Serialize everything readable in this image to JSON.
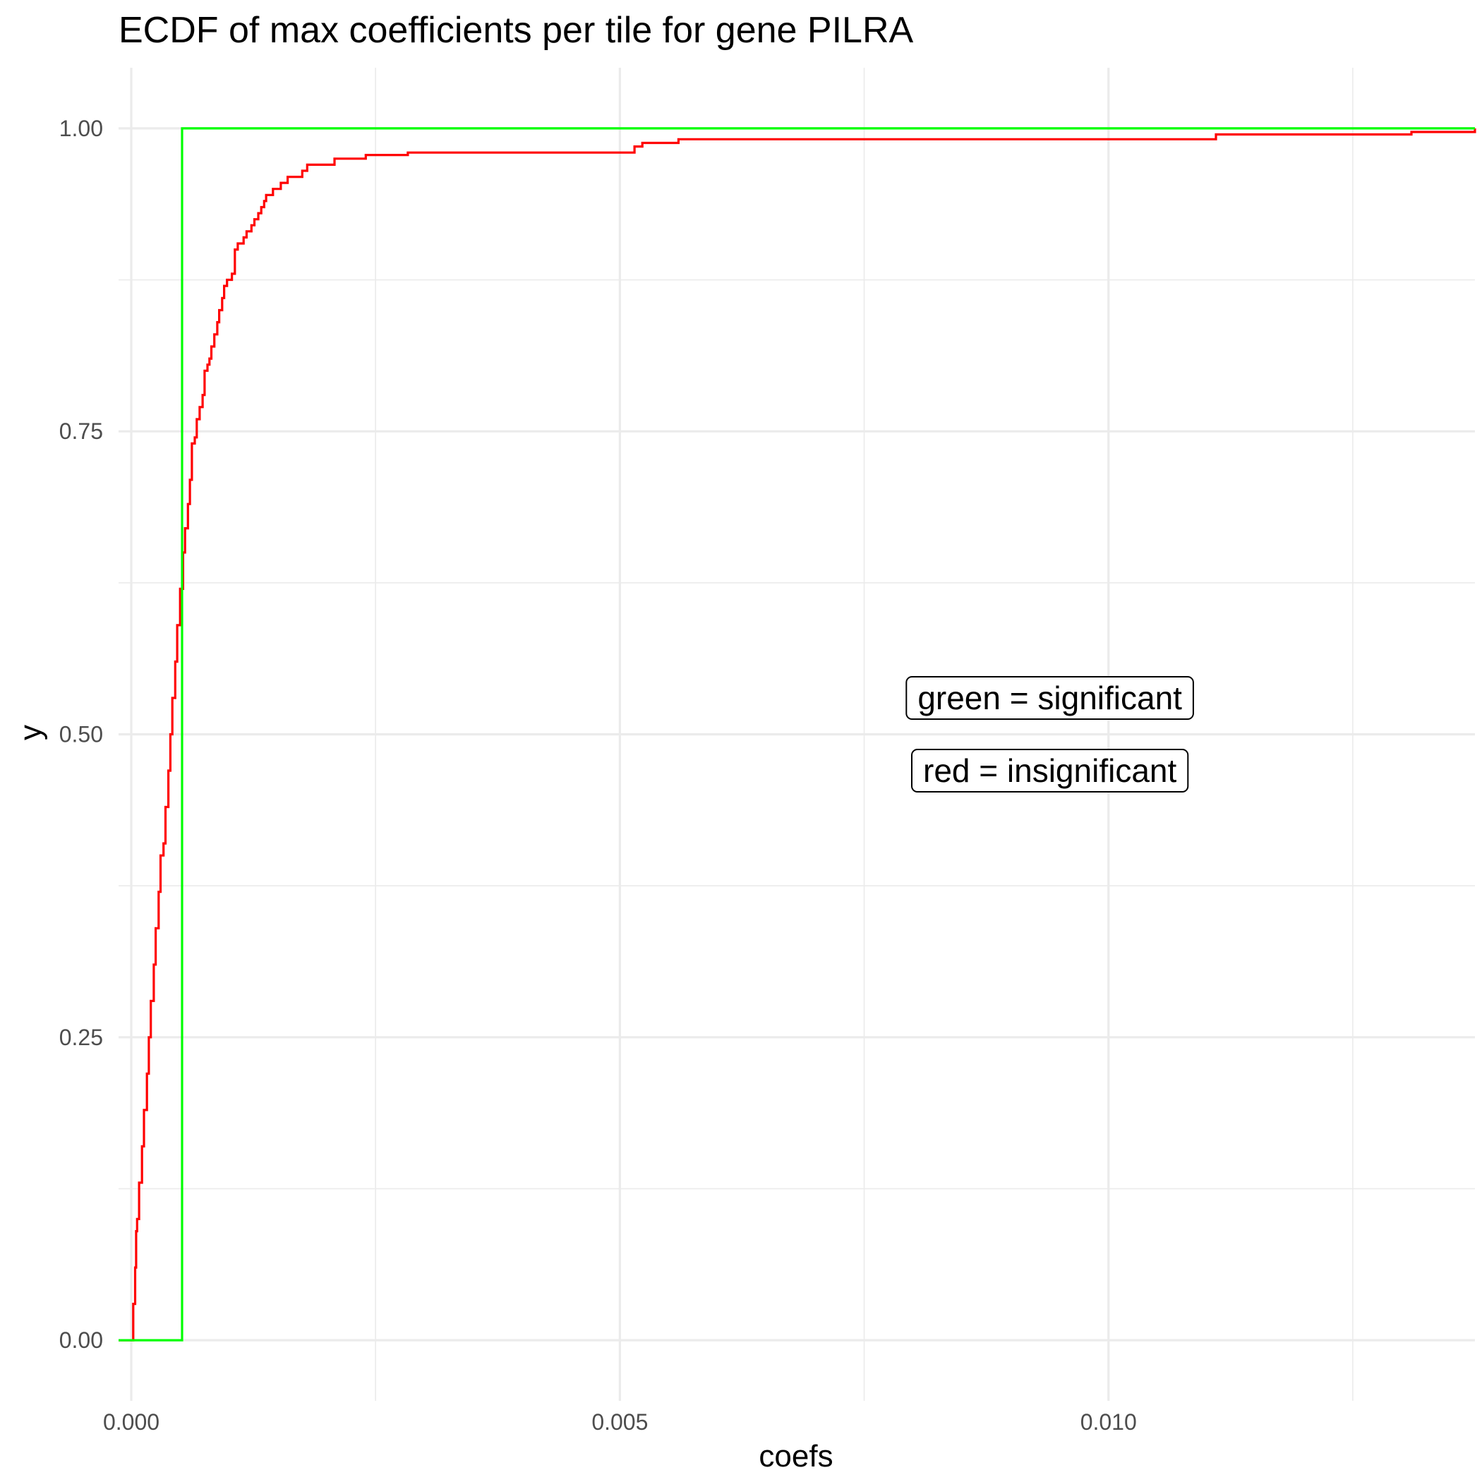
{
  "chart_data": {
    "type": "line",
    "title": "ECDF of max coefficients per tile for gene PILRA",
    "xlabel": "coefs",
    "ylabel": "y",
    "xlim": [
      -0.00013,
      0.01375
    ],
    "ylim": [
      -0.05,
      1.05
    ],
    "x_ticks": [
      0.0,
      0.005,
      0.01
    ],
    "x_tick_labels": [
      "0.000",
      "0.005",
      "0.010"
    ],
    "x_minor_ticks": [
      0.0025,
      0.0075,
      0.0125
    ],
    "y_ticks": [
      0.0,
      0.25,
      0.5,
      0.75,
      1.0
    ],
    "y_tick_labels": [
      "0.00",
      "0.25",
      "0.50",
      "0.75",
      "1.00"
    ],
    "y_minor_ticks": [
      0.125,
      0.375,
      0.625,
      0.875
    ],
    "grid": true,
    "legend": "none",
    "annotations": [
      {
        "text": "green = significant",
        "x": 0.0094,
        "y": 0.53
      },
      {
        "text": "red = insignificant",
        "x": 0.0094,
        "y": 0.47
      }
    ],
    "series": [
      {
        "color": "#ff0000",
        "x": [
          -0.00013,
          0.0,
          2e-05,
          4e-05,
          5e-05,
          6e-05,
          8e-05,
          0.00011,
          0.00013,
          0.00016,
          0.00018,
          0.0002,
          0.00023,
          0.00025,
          0.00028,
          0.0003,
          0.00033,
          0.00035,
          0.00038,
          0.0004,
          0.00042,
          0.00045,
          0.00047,
          0.0005,
          0.00053,
          0.00055,
          0.00058,
          0.0006,
          0.00062,
          0.00065,
          0.00067,
          0.0007,
          0.00073,
          0.00075,
          0.00078,
          0.0008,
          0.00082,
          0.00085,
          0.00088,
          0.0009,
          0.00093,
          0.00095,
          0.00098,
          0.001,
          0.00103,
          0.00106,
          0.00109,
          0.00112,
          0.00115,
          0.00118,
          0.0012,
          0.00123,
          0.00126,
          0.00128,
          0.0013,
          0.00133,
          0.00136,
          0.00138,
          0.0014,
          0.00142,
          0.00145,
          0.00148,
          0.0015,
          0.00153,
          0.00156,
          0.00158,
          0.0016,
          0.00163,
          0.00166,
          0.00168,
          0.0017,
          0.00175,
          0.00178,
          0.0018,
          0.00188,
          0.0019,
          0.00195,
          0.00208,
          0.00212,
          0.0023,
          0.00233,
          0.0024,
          0.0027,
          0.00275,
          0.00283,
          0.0031,
          0.00315,
          0.00325,
          0.00345,
          0.0035,
          0.0039,
          0.00425,
          0.0044,
          0.0046,
          0.0051,
          0.00515,
          0.00523,
          0.0055,
          0.0056,
          0.0075,
          0.0092,
          0.0107,
          0.0108,
          0.0111,
          0.0131,
          0.01375
        ],
        "y": [
          0.0,
          0.0,
          0.03,
          0.06,
          0.09,
          0.1,
          0.13,
          0.16,
          0.19,
          0.22,
          0.25,
          0.28,
          0.31,
          0.34,
          0.37,
          0.4,
          0.41,
          0.44,
          0.47,
          0.5,
          0.53,
          0.56,
          0.59,
          0.62,
          0.65,
          0.67,
          0.69,
          0.71,
          0.74,
          0.745,
          0.76,
          0.77,
          0.78,
          0.8,
          0.805,
          0.81,
          0.82,
          0.83,
          0.84,
          0.85,
          0.86,
          0.87,
          0.875,
          0.875,
          0.88,
          0.9,
          0.905,
          0.905,
          0.91,
          0.915,
          0.915,
          0.92,
          0.925,
          0.925,
          0.93,
          0.935,
          0.94,
          0.945,
          0.945,
          0.945,
          0.95,
          0.95,
          0.95,
          0.955,
          0.955,
          0.955,
          0.96,
          0.96,
          0.96,
          0.96,
          0.96,
          0.965,
          0.965,
          0.97,
          0.97,
          0.97,
          0.97,
          0.975,
          0.975,
          0.975,
          0.975,
          0.978,
          0.978,
          0.978,
          0.98,
          0.98,
          0.98,
          0.98,
          0.98,
          0.98,
          0.98,
          0.98,
          0.98,
          0.98,
          0.98,
          0.985,
          0.988,
          0.988,
          0.991,
          0.991,
          0.991,
          0.991,
          0.991,
          0.995,
          0.997,
          1.0
        ]
      },
      {
        "color": "#00ff00",
        "x": [
          -0.00013,
          0.00052,
          0.00052,
          0.01375
        ],
        "y": [
          0.0,
          0.0,
          1.0,
          1.0
        ]
      }
    ]
  }
}
